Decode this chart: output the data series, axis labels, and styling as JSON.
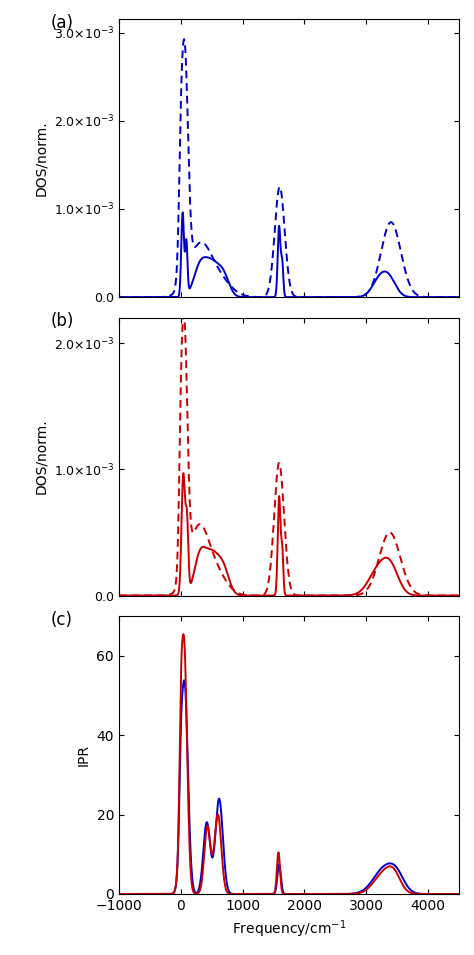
{
  "blue_color": "#0000CC",
  "red_color": "#CC0000",
  "xlim": [
    -1000,
    4500
  ],
  "xticks": [
    -1000,
    0,
    1000,
    2000,
    3000,
    4000
  ],
  "panel_a_ylim": [
    0,
    0.00315
  ],
  "panel_a_yticks": [
    0.0,
    0.001,
    0.002,
    0.003
  ],
  "panel_b_ylim": [
    0,
    0.0022
  ],
  "panel_b_yticks": [
    0.0,
    0.001,
    0.002
  ],
  "panel_c_ylim": [
    0,
    70
  ],
  "panel_c_yticks": [
    0,
    20,
    40,
    60
  ],
  "xlabel": "Frequency/cm$^{-1}$",
  "ylabel_dos": "DOS/norm.",
  "ylabel_ipr": "IPR"
}
